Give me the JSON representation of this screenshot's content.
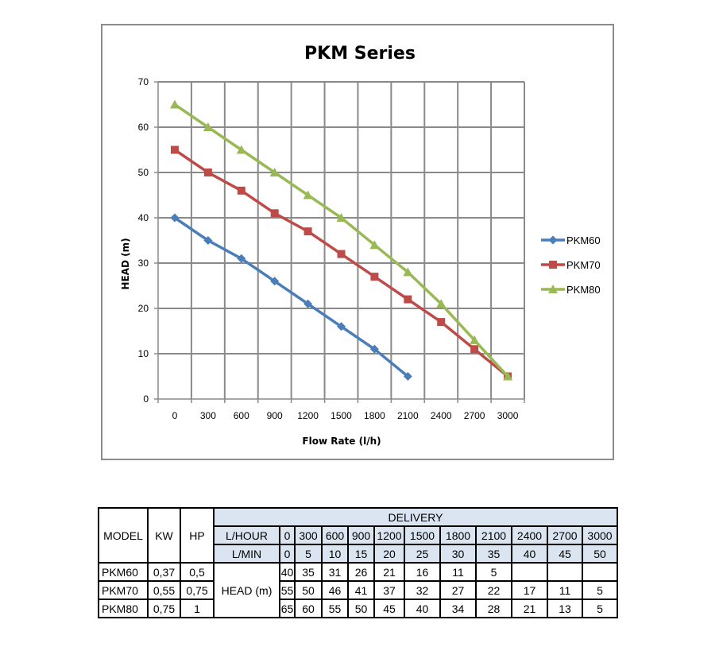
{
  "chart_data": {
    "type": "line",
    "title": "PKM Series",
    "xlabel": "Flow Rate (l/h)",
    "ylabel": "HEAD (m)",
    "categories": [
      "0",
      "300",
      "600",
      "900",
      "1200",
      "1500",
      "1800",
      "2100",
      "2400",
      "2700",
      "3000"
    ],
    "ylim": [
      0,
      70
    ],
    "yticks": [
      "0",
      "10",
      "20",
      "30",
      "40",
      "50",
      "60",
      "70"
    ],
    "grid": true,
    "legend_position": "right",
    "series": [
      {
        "name": "PKM60",
        "color": "#4a7ebb",
        "marker": "diamond",
        "values": [
          40,
          35,
          31,
          26,
          21,
          16,
          11,
          5,
          null,
          null,
          null
        ]
      },
      {
        "name": "PKM70",
        "color": "#be4b48",
        "marker": "square",
        "values": [
          55,
          50,
          46,
          41,
          37,
          32,
          27,
          22,
          17,
          11,
          5
        ]
      },
      {
        "name": "PKM80",
        "color": "#98b954",
        "marker": "triangle",
        "values": [
          65,
          60,
          55,
          50,
          45,
          40,
          34,
          28,
          21,
          13,
          5
        ]
      }
    ]
  },
  "table": {
    "model_header": "MODEL",
    "kw_header": "KW",
    "hp_header": "HP",
    "delivery_header": "DELIVERY",
    "lhour_label": "L/HOUR",
    "lmin_label": "L/MIN",
    "head_label": "HEAD (m)",
    "lhour_values": [
      "0",
      "300",
      "600",
      "900",
      "1200",
      "1500",
      "1800",
      "2100",
      "2400",
      "2700",
      "3000"
    ],
    "lmin_values": [
      "0",
      "5",
      "10",
      "15",
      "20",
      "25",
      "30",
      "35",
      "40",
      "45",
      "50"
    ],
    "rows": [
      {
        "model": "PKM60",
        "kw": "0,37",
        "hp": "0,5",
        "heads": [
          "40",
          "35",
          "31",
          "26",
          "21",
          "16",
          "11",
          "5",
          "",
          "",
          ""
        ]
      },
      {
        "model": "PKM70",
        "kw": "0,55",
        "hp": "0,75",
        "heads": [
          "55",
          "50",
          "46",
          "41",
          "37",
          "32",
          "27",
          "22",
          "17",
          "11",
          "5"
        ]
      },
      {
        "model": "PKM80",
        "kw": "0,75",
        "hp": "1",
        "heads": [
          "65",
          "60",
          "55",
          "50",
          "45",
          "40",
          "34",
          "28",
          "21",
          "13",
          "5"
        ]
      }
    ]
  }
}
